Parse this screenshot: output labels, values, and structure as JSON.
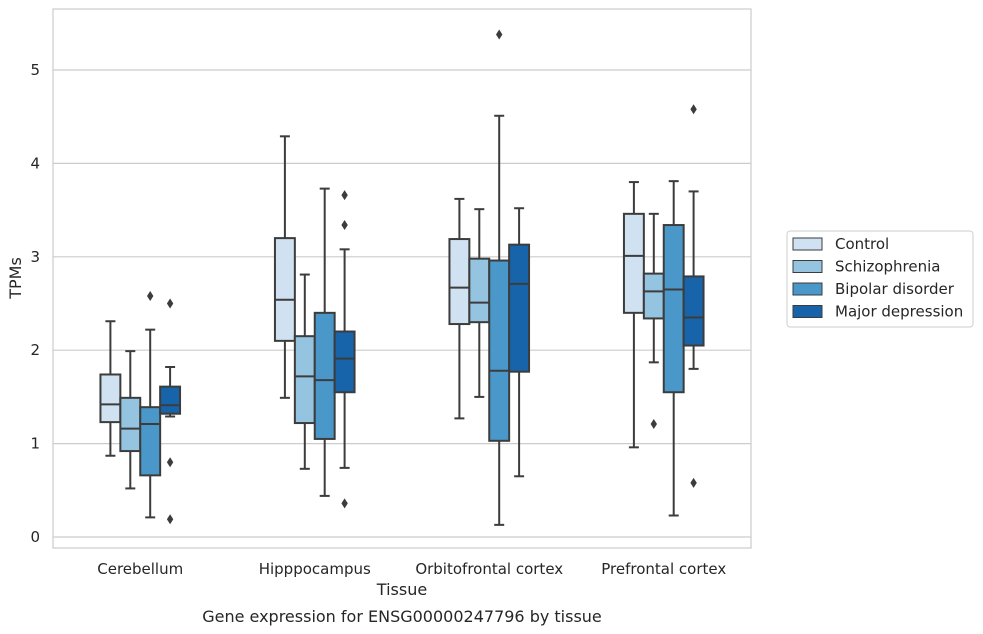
{
  "chart_data": {
    "type": "box",
    "xlabel": "Tissue",
    "ylabel": "TPMs",
    "caption": "Gene expression for ENSG00000247796 by tissue",
    "ylim": [
      -0.1,
      5.65
    ],
    "yticks": [
      0,
      1,
      2,
      3,
      4,
      5
    ],
    "grid": "horizontal",
    "legend_position": "right",
    "categories": [
      "Cerebellum",
      "Hipppocampus",
      "Orbitofrontal cortex",
      "Prefrontal cortex"
    ],
    "series": [
      {
        "name": "Control",
        "color": "#d0e1f2",
        "boxes": [
          {
            "whisker_low": 0.87,
            "q1": 1.23,
            "median": 1.42,
            "q3": 1.74,
            "whisker_high": 2.31,
            "outliers": []
          },
          {
            "whisker_low": 1.49,
            "q1": 2.1,
            "median": 2.54,
            "q3": 3.2,
            "whisker_high": 4.29,
            "outliers": []
          },
          {
            "whisker_low": 1.27,
            "q1": 2.28,
            "median": 2.67,
            "q3": 3.19,
            "whisker_high": 3.62,
            "outliers": []
          },
          {
            "whisker_low": 0.96,
            "q1": 2.4,
            "median": 3.01,
            "q3": 3.46,
            "whisker_high": 3.8,
            "outliers": []
          }
        ]
      },
      {
        "name": "Schizophrenia",
        "color": "#94c4df",
        "boxes": [
          {
            "whisker_low": 0.52,
            "q1": 0.92,
            "median": 1.16,
            "q3": 1.49,
            "whisker_high": 1.99,
            "outliers": []
          },
          {
            "whisker_low": 0.73,
            "q1": 1.22,
            "median": 1.72,
            "q3": 2.15,
            "whisker_high": 2.81,
            "outliers": []
          },
          {
            "whisker_low": 1.5,
            "q1": 2.3,
            "median": 2.51,
            "q3": 2.98,
            "whisker_high": 3.51,
            "outliers": []
          },
          {
            "whisker_low": 1.87,
            "q1": 2.34,
            "median": 2.63,
            "q3": 2.82,
            "whisker_high": 3.46,
            "outliers": [
              1.21
            ]
          }
        ]
      },
      {
        "name": "Bipolar disorder",
        "color": "#4a98c9",
        "boxes": [
          {
            "whisker_low": 0.21,
            "q1": 0.66,
            "median": 1.21,
            "q3": 1.39,
            "whisker_high": 2.22,
            "outliers": [
              2.58
            ]
          },
          {
            "whisker_low": 0.44,
            "q1": 1.05,
            "median": 1.68,
            "q3": 2.4,
            "whisker_high": 3.73,
            "outliers": []
          },
          {
            "whisker_low": 0.13,
            "q1": 1.03,
            "median": 1.78,
            "q3": 2.96,
            "whisker_high": 4.51,
            "outliers": [
              5.38
            ]
          },
          {
            "whisker_low": 0.23,
            "q1": 1.55,
            "median": 2.65,
            "q3": 3.34,
            "whisker_high": 3.81,
            "outliers": []
          }
        ]
      },
      {
        "name": "Major depression",
        "color": "#1764ab",
        "boxes": [
          {
            "whisker_low": 1.29,
            "q1": 1.32,
            "median": 1.41,
            "q3": 1.61,
            "whisker_high": 1.82,
            "outliers": [
              2.5,
              0.8,
              0.19
            ]
          },
          {
            "whisker_low": 0.74,
            "q1": 1.55,
            "median": 1.91,
            "q3": 2.2,
            "whisker_high": 3.08,
            "outliers": [
              3.66,
              3.34,
              0.36
            ]
          },
          {
            "whisker_low": 0.65,
            "q1": 1.77,
            "median": 2.71,
            "q3": 3.13,
            "whisker_high": 3.52,
            "outliers": []
          },
          {
            "whisker_low": 1.8,
            "q1": 2.05,
            "median": 2.35,
            "q3": 2.79,
            "whisker_high": 3.7,
            "outliers": [
              4.58,
              0.58
            ]
          }
        ]
      }
    ]
  }
}
